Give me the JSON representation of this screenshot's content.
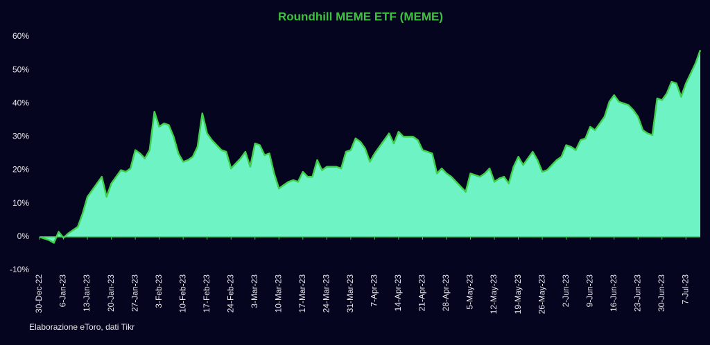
{
  "chart_data": {
    "type": "area",
    "title": "Roundhill MEME ETF (MEME)",
    "source": "Elaborazione eToro, dati Tikr",
    "categories": [
      "30-Dec-22",
      null,
      null,
      null,
      null,
      "6-Jan-23",
      null,
      null,
      null,
      null,
      "13-Jan-23",
      null,
      null,
      null,
      null,
      "20-Jan-23",
      null,
      null,
      null,
      null,
      "27-Jan-23",
      null,
      null,
      null,
      null,
      "3-Feb-23",
      null,
      null,
      null,
      null,
      "10-Feb-23",
      null,
      null,
      null,
      null,
      "17-Feb-23",
      null,
      null,
      null,
      null,
      "24-Feb-23",
      null,
      null,
      null,
      null,
      "3-Mar-23",
      null,
      null,
      null,
      null,
      "10-Mar-23",
      null,
      null,
      null,
      null,
      "17-Mar-23",
      null,
      null,
      null,
      null,
      "24-Mar-23",
      null,
      null,
      null,
      null,
      "31-Mar-23",
      null,
      null,
      null,
      null,
      "7-Apr-23",
      null,
      null,
      null,
      null,
      "14-Apr-23",
      null,
      null,
      null,
      null,
      "21-Apr-23",
      null,
      null,
      null,
      null,
      "28-Apr-23",
      null,
      null,
      null,
      null,
      "5-May-23",
      null,
      null,
      null,
      null,
      "12-May-23",
      null,
      null,
      null,
      null,
      "19-May-23",
      null,
      null,
      null,
      null,
      "26-May-23",
      null,
      null,
      null,
      null,
      "2-Jun-23",
      null,
      null,
      null,
      null,
      "9-Jun-23",
      null,
      null,
      null,
      null,
      "16-Jun-23",
      null,
      null,
      null,
      null,
      "23-Jun-23",
      null,
      null,
      null,
      null,
      "30-Jun-23",
      null,
      null,
      null,
      null,
      "7-Jul-23",
      null,
      null,
      null
    ],
    "series": [
      {
        "name": "MEME",
        "color": "#6ef3c4",
        "line_color": "#3fcf4c",
        "values": [
          0,
          -0.5,
          -1,
          -1.8,
          1.5,
          -0.3,
          1,
          2,
          3,
          7,
          12,
          14,
          16,
          18,
          12,
          16,
          18,
          20,
          19.5,
          20.5,
          26,
          25,
          23.5,
          26,
          37.5,
          33,
          34,
          33.5,
          30,
          25,
          22.5,
          23,
          24,
          27,
          37,
          31,
          29,
          27.5,
          26,
          25.5,
          20.5,
          22,
          23.5,
          25.5,
          21,
          28,
          27.5,
          24.5,
          25,
          19,
          14.5,
          15.5,
          16.5,
          17,
          16.5,
          19.5,
          18,
          18,
          23,
          20,
          21,
          21,
          21,
          20.5,
          25.5,
          26,
          29.5,
          28.5,
          26.5,
          22.5,
          25,
          27,
          29,
          31,
          28,
          31.5,
          30,
          30,
          30,
          29,
          26,
          25.5,
          25,
          19,
          20.5,
          19,
          18,
          16.5,
          15,
          13.5,
          19,
          18.5,
          18,
          19,
          20.5,
          16.5,
          17.5,
          18,
          16,
          21,
          24,
          21.5,
          23.5,
          25.5,
          23,
          19.5,
          20,
          21.5,
          23,
          24,
          27.5,
          27,
          26,
          29,
          29.5,
          33,
          32,
          34,
          36,
          40.5,
          42.5,
          40.5,
          40,
          39.5,
          38,
          36,
          32,
          31,
          30.5,
          41.5,
          41,
          43,
          46.5,
          46,
          42,
          46,
          49,
          52,
          56
        ]
      }
    ],
    "ylim": [
      -10,
      60
    ],
    "yticks": [
      {
        "value": -10,
        "label": "-10%"
      },
      {
        "value": 0,
        "label": "0%"
      },
      {
        "value": 10,
        "label": "10%"
      },
      {
        "value": 20,
        "label": "20%"
      },
      {
        "value": 30,
        "label": "30%"
      },
      {
        "value": 40,
        "label": "40%"
      },
      {
        "value": 50,
        "label": "50%"
      },
      {
        "value": 60,
        "label": "60%"
      }
    ]
  }
}
